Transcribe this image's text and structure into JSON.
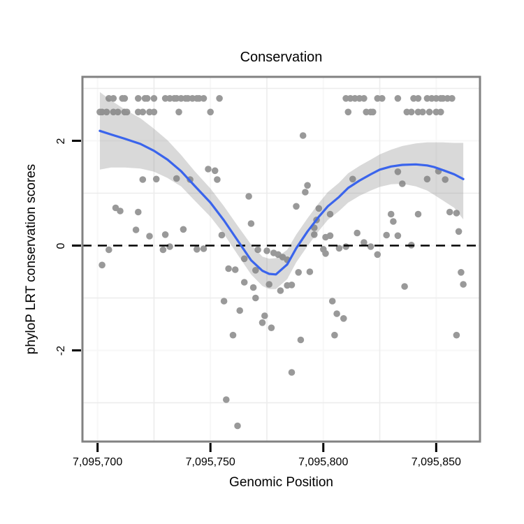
{
  "chart_data": {
    "type": "scatter",
    "title": "Conservation",
    "xlabel": "Genomic Position",
    "ylabel": "phyloP LRT conservation scores",
    "legend": "none",
    "grid": "minor-visible",
    "x_domain": [
      7095693.3,
      7095869.4
    ],
    "y_domain": [
      -3.74,
      3.22
    ],
    "x_ticks": [
      {
        "value": 7095700,
        "label": "7,095,700"
      },
      {
        "value": 7095750,
        "label": "7,095,750"
      },
      {
        "value": 7095800,
        "label": "7,095,800"
      },
      {
        "value": 7095850,
        "label": "7,095,850"
      }
    ],
    "y_ticks": [
      {
        "value": 2,
        "label": "2"
      },
      {
        "value": 0,
        "label": "0"
      },
      {
        "value": -2,
        "label": "-2"
      }
    ],
    "x_minor": [
      7095725,
      7095775,
      7095825
    ],
    "y_minor": [
      3,
      1,
      -1,
      -3
    ],
    "hline": {
      "y": 0,
      "style": "dashed",
      "dash": [
        13,
        9
      ],
      "color": "#000000",
      "width": 2.5
    },
    "colors": {
      "point": "#999999",
      "smooth": "#3A64EC",
      "ribbon": "rgba(128,128,128,0.30)",
      "panel_border": "#828282",
      "panel_bg": "#ffffff",
      "grid_major": "#f7f7f7",
      "grid_minor": "#ececec",
      "tick_mark": "#000000",
      "text": "#000000"
    },
    "point_radius": 4.8,
    "smooth_width": 3.2,
    "points": [
      [
        705,
        2.81
      ],
      [
        707,
        2.81
      ],
      [
        711,
        2.81
      ],
      [
        712,
        2.81
      ],
      [
        718,
        2.81
      ],
      [
        721,
        2.81
      ],
      [
        722,
        2.81
      ],
      [
        725,
        2.81
      ],
      [
        730,
        2.81
      ],
      [
        732,
        2.81
      ],
      [
        734,
        2.81
      ],
      [
        735,
        2.81
      ],
      [
        737,
        2.81
      ],
      [
        739,
        2.81
      ],
      [
        740,
        2.81
      ],
      [
        742,
        2.81
      ],
      [
        744,
        2.81
      ],
      [
        745,
        2.81
      ],
      [
        747,
        2.81
      ],
      [
        754,
        2.81
      ],
      [
        810,
        2.81
      ],
      [
        812,
        2.81
      ],
      [
        814,
        2.81
      ],
      [
        816,
        2.81
      ],
      [
        818,
        2.81
      ],
      [
        824,
        2.81
      ],
      [
        826,
        2.81
      ],
      [
        833,
        2.81
      ],
      [
        840,
        2.81
      ],
      [
        842,
        2.81
      ],
      [
        846,
        2.81
      ],
      [
        848,
        2.81
      ],
      [
        850,
        2.81
      ],
      [
        852,
        2.81
      ],
      [
        853,
        2.81
      ],
      [
        855,
        2.81
      ],
      [
        857,
        2.81
      ],
      [
        701,
        2.55
      ],
      [
        702,
        2.55
      ],
      [
        704,
        2.55
      ],
      [
        707,
        2.55
      ],
      [
        709,
        2.55
      ],
      [
        712,
        2.55
      ],
      [
        713,
        2.55
      ],
      [
        718,
        2.55
      ],
      [
        720,
        2.55
      ],
      [
        723,
        2.55
      ],
      [
        725,
        2.55
      ],
      [
        736,
        2.55
      ],
      [
        750,
        2.55
      ],
      [
        811,
        2.55
      ],
      [
        819,
        2.55
      ],
      [
        821,
        2.55
      ],
      [
        822,
        2.55
      ],
      [
        837,
        2.55
      ],
      [
        839,
        2.55
      ],
      [
        842,
        2.55
      ],
      [
        844,
        2.55
      ],
      [
        847,
        2.55
      ],
      [
        850,
        2.55
      ],
      [
        852,
        2.55
      ],
      [
        749,
        1.46
      ],
      [
        752,
        1.43
      ],
      [
        720,
        1.26
      ],
      [
        726,
        1.27
      ],
      [
        735,
        1.28
      ],
      [
        741,
        1.26
      ],
      [
        753,
        1.26
      ],
      [
        767,
        0.94
      ],
      [
        708,
        0.72
      ],
      [
        710,
        0.66
      ],
      [
        718,
        0.64
      ],
      [
        768,
        0.42
      ],
      [
        717,
        0.3
      ],
      [
        723,
        0.18
      ],
      [
        730,
        0.21
      ],
      [
        738,
        0.31
      ],
      [
        755,
        0.2
      ],
      [
        791,
        2.1
      ],
      [
        788,
        0.75
      ],
      [
        793,
        1.15
      ],
      [
        792,
        1.02
      ],
      [
        798,
        0.71
      ],
      [
        797,
        0.49
      ],
      [
        796,
        0.34
      ],
      [
        796,
        0.21
      ],
      [
        803,
        0.6
      ],
      [
        803,
        0.19
      ],
      [
        801,
        0.16
      ],
      [
        813,
        1.27
      ],
      [
        815,
        0.24
      ],
      [
        818,
        0.06
      ],
      [
        833,
        1.41
      ],
      [
        835,
        1.18
      ],
      [
        828,
        0.2
      ],
      [
        833,
        0.19
      ],
      [
        830,
        0.6
      ],
      [
        831,
        0.46
      ],
      [
        842,
        0.6
      ],
      [
        839,
        0.01
      ],
      [
        846,
        1.27
      ],
      [
        851,
        1.42
      ],
      [
        854,
        1.26
      ],
      [
        856,
        0.64
      ],
      [
        859,
        0.62
      ],
      [
        860,
        0.27
      ],
      [
        705,
        -0.08
      ],
      [
        702,
        -0.37
      ],
      [
        729,
        -0.08
      ],
      [
        732,
        -0.02
      ],
      [
        744,
        -0.07
      ],
      [
        747,
        -0.06
      ],
      [
        771,
        -0.08
      ],
      [
        775,
        -0.1
      ],
      [
        778,
        -0.14
      ],
      [
        780,
        -0.17
      ],
      [
        765,
        -0.25
      ],
      [
        758,
        -0.44
      ],
      [
        761,
        -0.46
      ],
      [
        770,
        -0.47
      ],
      [
        765,
        -0.7
      ],
      [
        769,
        -0.8
      ],
      [
        776,
        -0.74
      ],
      [
        781,
        -0.86
      ],
      [
        770,
        -1.0
      ],
      [
        756,
        -1.06
      ],
      [
        763,
        -1.24
      ],
      [
        774,
        -1.34
      ],
      [
        773,
        -1.47
      ],
      [
        777,
        -1.57
      ],
      [
        760,
        -1.71
      ],
      [
        757,
        -2.94
      ],
      [
        762,
        -3.44
      ],
      [
        782,
        -0.22
      ],
      [
        784,
        -0.27
      ],
      [
        784,
        -0.76
      ],
      [
        786,
        -0.75
      ],
      [
        789,
        -0.51
      ],
      [
        794,
        -0.5
      ],
      [
        800,
        -0.07
      ],
      [
        801,
        -0.15
      ],
      [
        807,
        -0.05
      ],
      [
        810,
        -0.02
      ],
      [
        821,
        -0.02
      ],
      [
        824,
        -0.17
      ],
      [
        804,
        -1.06
      ],
      [
        806,
        -1.3
      ],
      [
        809,
        -1.39
      ],
      [
        805,
        -1.71
      ],
      [
        790,
        -1.8
      ],
      [
        786,
        -2.42
      ],
      [
        836,
        -0.78
      ],
      [
        861,
        -0.51
      ],
      [
        862,
        -0.74
      ],
      [
        859,
        -1.71
      ]
    ],
    "smooth_line": [
      [
        701,
        2.19
      ],
      [
        706,
        2.12
      ],
      [
        712,
        2.04
      ],
      [
        719,
        1.94
      ],
      [
        725,
        1.81
      ],
      [
        731,
        1.64
      ],
      [
        737,
        1.42
      ],
      [
        743,
        1.14
      ],
      [
        750,
        0.82
      ],
      [
        756,
        0.48
      ],
      [
        762,
        0.1
      ],
      [
        768,
        -0.28
      ],
      [
        773,
        -0.48
      ],
      [
        776,
        -0.54
      ],
      [
        779,
        -0.55
      ],
      [
        784,
        -0.36
      ],
      [
        788,
        -0.05
      ],
      [
        793,
        0.27
      ],
      [
        798,
        0.55
      ],
      [
        802,
        0.75
      ],
      [
        807,
        0.93
      ],
      [
        811,
        1.1
      ],
      [
        816,
        1.24
      ],
      [
        821,
        1.36
      ],
      [
        825,
        1.45
      ],
      [
        830,
        1.51
      ],
      [
        835,
        1.54
      ],
      [
        841,
        1.55
      ],
      [
        846,
        1.53
      ],
      [
        849,
        1.5
      ],
      [
        853,
        1.44
      ],
      [
        858,
        1.36
      ],
      [
        862,
        1.27
      ]
    ],
    "ribbon": [
      [
        701,
        1.45,
        2.93
      ],
      [
        706,
        1.49,
        2.77
      ],
      [
        712,
        1.49,
        2.6
      ],
      [
        719,
        1.47,
        2.43
      ],
      [
        725,
        1.41,
        2.23
      ],
      [
        731,
        1.29,
        2.01
      ],
      [
        737,
        1.13,
        1.73
      ],
      [
        743,
        0.86,
        1.42
      ],
      [
        750,
        0.55,
        1.09
      ],
      [
        756,
        0.22,
        0.75
      ],
      [
        762,
        -0.17,
        0.38
      ],
      [
        768,
        -0.55,
        0.02
      ],
      [
        773,
        -0.77,
        -0.21
      ],
      [
        776,
        -0.83,
        -0.25
      ],
      [
        779,
        -0.83,
        -0.24
      ],
      [
        784,
        -0.64,
        -0.08
      ],
      [
        788,
        -0.32,
        0.21
      ],
      [
        793,
        -0.01,
        0.52
      ],
      [
        798,
        0.28,
        0.81
      ],
      [
        802,
        0.49,
        1.02
      ],
      [
        807,
        0.66,
        1.2
      ],
      [
        811,
        0.82,
        1.38
      ],
      [
        816,
        0.95,
        1.52
      ],
      [
        821,
        1.05,
        1.64
      ],
      [
        825,
        1.12,
        1.74
      ],
      [
        830,
        1.17,
        1.83
      ],
      [
        835,
        1.18,
        1.9
      ],
      [
        841,
        1.13,
        1.95
      ],
      [
        846,
        1.05,
        1.97
      ],
      [
        849,
        0.97,
        1.97
      ],
      [
        853,
        0.86,
        1.97
      ],
      [
        858,
        0.72,
        1.96
      ],
      [
        862,
        0.5,
        1.96
      ]
    ]
  }
}
